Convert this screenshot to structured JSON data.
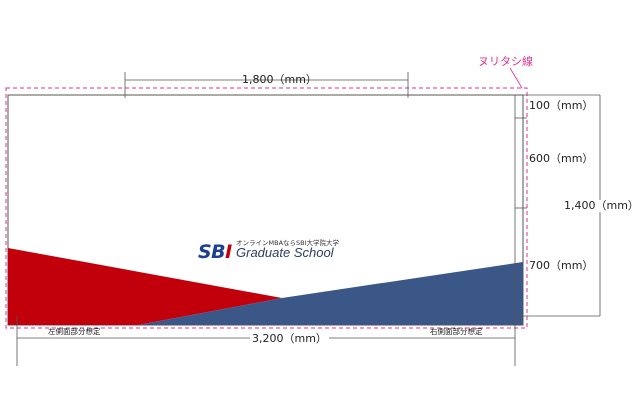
{
  "labels": {
    "guide_line": "ヌリタシ線",
    "top_width": "1,800（mm）",
    "bottom_width": "3,200（mm）",
    "seg_top": "100（mm）",
    "seg_mid": "600（mm）",
    "seg_bottom": "700（mm）",
    "total_height": "1,400（mm）",
    "left_side_note": "左側面部分想定",
    "right_side_note": "右側面部分想定"
  },
  "brand": {
    "tagline": "オンラインMBAならSBI大学院大学",
    "logo_sb": "SB",
    "logo_i": "I",
    "name": "Graduate School"
  },
  "colors": {
    "red": "#c2000b",
    "blue": "#3a5788",
    "bleed": "#e0338a",
    "line": "#555555"
  }
}
